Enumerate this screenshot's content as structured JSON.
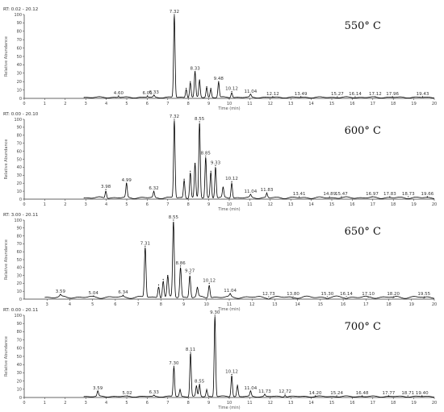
{
  "chart_data": [
    {
      "type": "line",
      "rt_range": "RT: 0.02 - 20.12",
      "temperature": "550° C",
      "ylabel": "Relative Abundance",
      "xlabel": "Time (min)",
      "xlim": [
        0,
        20
      ],
      "ylim": [
        0,
        100
      ],
      "x_ticks": [
        0,
        1,
        2,
        3,
        4,
        5,
        6,
        7,
        8,
        9,
        10,
        11,
        12,
        13,
        14,
        15,
        16,
        17,
        18,
        19,
        20
      ],
      "y_ticks": [
        0,
        10,
        20,
        30,
        40,
        50,
        60,
        70,
        80,
        90,
        100
      ],
      "base_level": 2,
      "peaks": [
        {
          "x": 4.6,
          "y": 3,
          "label": "4.60"
        },
        {
          "x": 6.01,
          "y": 3,
          "label": "6.01"
        },
        {
          "x": 6.33,
          "y": 4,
          "label": "6.33"
        },
        {
          "x": 7.32,
          "y": 100,
          "label": "7.32"
        },
        {
          "x": 7.9,
          "y": 12,
          "label": ""
        },
        {
          "x": 8.1,
          "y": 20,
          "label": ""
        },
        {
          "x": 8.33,
          "y": 32,
          "label": "8.33"
        },
        {
          "x": 8.55,
          "y": 22,
          "label": ""
        },
        {
          "x": 8.9,
          "y": 14,
          "label": ""
        },
        {
          "x": 9.1,
          "y": 12,
          "label": ""
        },
        {
          "x": 9.48,
          "y": 20,
          "label": "9.48"
        },
        {
          "x": 10.12,
          "y": 8,
          "label": "10.12"
        },
        {
          "x": 11.04,
          "y": 5,
          "label": "11.04"
        },
        {
          "x": 12.12,
          "y": 2,
          "label": "12.12"
        },
        {
          "x": 13.49,
          "y": 2,
          "label": "13.49"
        },
        {
          "x": 15.27,
          "y": 2,
          "label": "15.27"
        },
        {
          "x": 16.14,
          "y": 2,
          "label": "16.14"
        },
        {
          "x": 17.12,
          "y": 2,
          "label": "17.12"
        },
        {
          "x": 17.96,
          "y": 2,
          "label": "17.96"
        },
        {
          "x": 19.43,
          "y": 2,
          "label": "19.43"
        }
      ]
    },
    {
      "type": "line",
      "rt_range": "RT: 0.00 - 20.10",
      "temperature": "600° C",
      "ylabel": "Relative Abundance",
      "xlabel": "Time (min)",
      "xlim": [
        0,
        20
      ],
      "ylim": [
        0,
        100
      ],
      "x_ticks": [
        0,
        1,
        2,
        3,
        4,
        5,
        6,
        7,
        8,
        9,
        10,
        11,
        12,
        13,
        14,
        15,
        16,
        17,
        18,
        19,
        20
      ],
      "y_ticks": [
        0,
        10,
        20,
        30,
        40,
        50,
        60,
        70,
        80,
        90,
        100
      ],
      "base_level": 3,
      "peaks": [
        {
          "x": 3.98,
          "y": 12,
          "label": "3.98"
        },
        {
          "x": 4.99,
          "y": 20,
          "label": "4.99"
        },
        {
          "x": 6.32,
          "y": 10,
          "label": "6.32"
        },
        {
          "x": 7.32,
          "y": 100,
          "label": "7.32"
        },
        {
          "x": 7.8,
          "y": 25,
          "label": ""
        },
        {
          "x": 8.1,
          "y": 35,
          "label": ""
        },
        {
          "x": 8.33,
          "y": 45,
          "label": ""
        },
        {
          "x": 8.55,
          "y": 97,
          "label": "8.55"
        },
        {
          "x": 8.85,
          "y": 54,
          "label": "8.85"
        },
        {
          "x": 9.1,
          "y": 35,
          "label": ""
        },
        {
          "x": 9.33,
          "y": 42,
          "label": "9.33"
        },
        {
          "x": 9.7,
          "y": 15,
          "label": ""
        },
        {
          "x": 10.12,
          "y": 22,
          "label": "10.12"
        },
        {
          "x": 11.04,
          "y": 6,
          "label": "11.04"
        },
        {
          "x": 11.83,
          "y": 8,
          "label": "11.83"
        },
        {
          "x": 13.41,
          "y": 3,
          "label": "13.41"
        },
        {
          "x": 14.89,
          "y": 3,
          "label": "14.89"
        },
        {
          "x": 15.47,
          "y": 3,
          "label": "15.47"
        },
        {
          "x": 16.97,
          "y": 3,
          "label": "16.97"
        },
        {
          "x": 17.83,
          "y": 3,
          "label": "17.83"
        },
        {
          "x": 18.73,
          "y": 3,
          "label": "18.73"
        },
        {
          "x": 19.66,
          "y": 3,
          "label": "19.66"
        }
      ]
    },
    {
      "type": "line",
      "rt_range": "RT: 3.00 - 20.11",
      "temperature": "650° C",
      "ylabel": "Relative Abundance",
      "xlabel": "Time (min)",
      "xlim": [
        2,
        20
      ],
      "ylim": [
        0,
        100
      ],
      "x_ticks": [
        3,
        4,
        5,
        6,
        7,
        8,
        9,
        10,
        11,
        12,
        13,
        14,
        15,
        16,
        17,
        18,
        19,
        20
      ],
      "y_ticks": [
        0,
        10,
        20,
        30,
        40,
        50,
        60,
        70,
        80,
        90,
        100
      ],
      "base_level": 4,
      "peaks": [
        {
          "x": 3.59,
          "y": 6,
          "label": "3.59"
        },
        {
          "x": 5.04,
          "y": 4,
          "label": "5.04"
        },
        {
          "x": 6.34,
          "y": 5,
          "label": "6.34"
        },
        {
          "x": 7.31,
          "y": 67,
          "label": "7.31"
        },
        {
          "x": 7.9,
          "y": 18,
          "label": ""
        },
        {
          "x": 8.1,
          "y": 25,
          "label": ""
        },
        {
          "x": 8.3,
          "y": 30,
          "label": ""
        },
        {
          "x": 8.55,
          "y": 100,
          "label": "8.55"
        },
        {
          "x": 8.86,
          "y": 42,
          "label": "8.86"
        },
        {
          "x": 9.27,
          "y": 32,
          "label": "9.27"
        },
        {
          "x": 9.6,
          "y": 15,
          "label": ""
        },
        {
          "x": 10.12,
          "y": 20,
          "label": "10.12"
        },
        {
          "x": 11.04,
          "y": 7,
          "label": "11.04"
        },
        {
          "x": 12.73,
          "y": 3,
          "label": "12.73"
        },
        {
          "x": 13.8,
          "y": 3,
          "label": "13.80"
        },
        {
          "x": 15.3,
          "y": 3,
          "label": "15.30"
        },
        {
          "x": 16.14,
          "y": 3,
          "label": "16.14"
        },
        {
          "x": 17.1,
          "y": 3,
          "label": "17.10"
        },
        {
          "x": 18.2,
          "y": 3,
          "label": "18.20"
        },
        {
          "x": 19.55,
          "y": 3,
          "label": "19.55"
        }
      ]
    },
    {
      "type": "line",
      "rt_range": "RT: 0.00 - 20.11",
      "temperature": "700° C",
      "ylabel": "Relative Abundance",
      "xlabel": "Time (min)",
      "xlim": [
        0,
        20
      ],
      "ylim": [
        0,
        100
      ],
      "x_ticks": [
        0,
        1,
        2,
        3,
        4,
        5,
        6,
        7,
        8,
        9,
        10,
        11,
        12,
        13,
        14,
        15,
        16,
        17,
        18,
        19,
        20
      ],
      "y_ticks": [
        0,
        10,
        20,
        30,
        40,
        50,
        60,
        70,
        80,
        90,
        100
      ],
      "base_level": 2,
      "peaks": [
        {
          "x": 3.59,
          "y": 8,
          "label": "3.59"
        },
        {
          "x": 5.02,
          "y": 2,
          "label": "5.02"
        },
        {
          "x": 6.33,
          "y": 3,
          "label": "6.33"
        },
        {
          "x": 7.3,
          "y": 38,
          "label": "7.30"
        },
        {
          "x": 7.6,
          "y": 10,
          "label": ""
        },
        {
          "x": 8.11,
          "y": 55,
          "label": "8.11"
        },
        {
          "x": 8.4,
          "y": 14,
          "label": ""
        },
        {
          "x": 8.55,
          "y": 16,
          "label": "8.55"
        },
        {
          "x": 8.9,
          "y": 10,
          "label": ""
        },
        {
          "x": 9.3,
          "y": 100,
          "label": "9.30"
        },
        {
          "x": 10.12,
          "y": 28,
          "label": "10.12"
        },
        {
          "x": 10.4,
          "y": 15,
          "label": ""
        },
        {
          "x": 11.04,
          "y": 8,
          "label": "11.04"
        },
        {
          "x": 11.73,
          "y": 4,
          "label": "11.73"
        },
        {
          "x": 12.72,
          "y": 4,
          "label": "12.72"
        },
        {
          "x": 14.2,
          "y": 2,
          "label": "14.20"
        },
        {
          "x": 15.24,
          "y": 2,
          "label": "15.24"
        },
        {
          "x": 16.48,
          "y": 2,
          "label": "16.48"
        },
        {
          "x": 17.77,
          "y": 2,
          "label": "17.77"
        },
        {
          "x": 18.71,
          "y": 2,
          "label": "18.71"
        },
        {
          "x": 19.4,
          "y": 2,
          "label": "19.40"
        }
      ]
    }
  ]
}
